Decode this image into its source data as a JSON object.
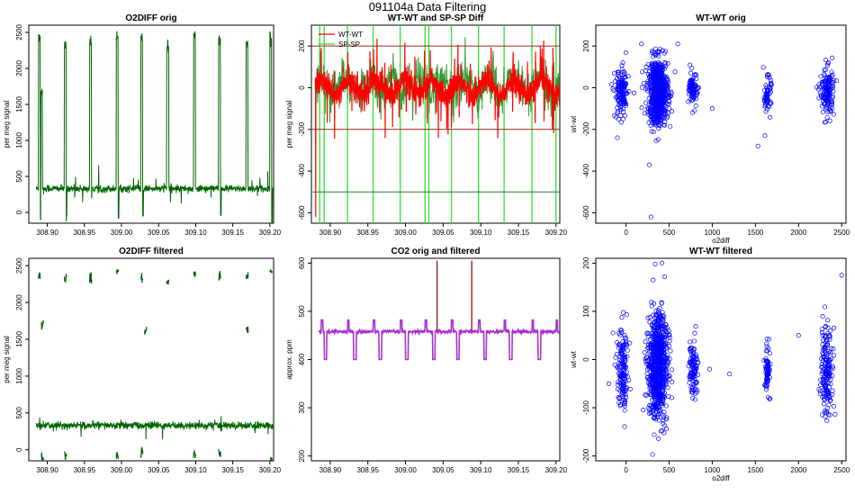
{
  "figure_title": "091104a   Data Filtering",
  "colors": {
    "o2": "#006400",
    "wt": "#ff0000",
    "sp": "#33dd33",
    "co2_filtered": "#aa33cc",
    "co2_orig": "#8b0000",
    "scatter": "#0000ff",
    "hline_red": "#a02020",
    "hline_green": "#228822"
  },
  "chart_data": [
    {
      "id": "o2diff-orig",
      "type": "line",
      "title": "O2DIFF orig",
      "xlabel": "",
      "ylabel": "per meg signal",
      "xlim": [
        308.875,
        309.205
      ],
      "ylim": [
        -150,
        2600
      ],
      "xticks": [
        308.9,
        308.95,
        309.0,
        309.05,
        309.1,
        309.15,
        309.2
      ],
      "xtick_labels": [
        "308.90",
        "308.95",
        "309.00",
        "309.05",
        "309.10",
        "309.15",
        "309.20"
      ],
      "yticks": [
        0,
        500,
        1000,
        1500,
        2000,
        2500
      ],
      "ytick_labels": [
        "0",
        "500",
        "1000",
        "1500",
        "2000",
        "2500"
      ],
      "baseline": 330,
      "noise": 25,
      "series_range": [
        308.885,
        309.205
      ],
      "spikes": [
        308.888,
        308.923,
        308.957,
        308.993,
        309.026,
        309.061,
        309.097,
        309.131,
        309.168,
        309.2
      ],
      "spike_heights": [
        2450,
        2300,
        2350,
        2450,
        2400,
        2300,
        2450,
        2400,
        2350,
        2480
      ],
      "spike_width": 0.0025,
      "secondary_spike": [
        308.892,
        1700
      ],
      "dips": [
        308.888,
        308.923,
        308.993,
        309.026,
        309.131,
        309.2
      ],
      "dip_values": [
        -100,
        -50,
        -80,
        -50,
        -40,
        -150
      ]
    },
    {
      "id": "wt-sp-diff",
      "type": "line",
      "title": "WT-WT and SP-SP Diff",
      "xlabel": "",
      "ylabel": "per meg signal",
      "xlim": [
        308.875,
        309.205
      ],
      "ylim": [
        -650,
        300
      ],
      "xticks": [
        308.9,
        308.95,
        309.0,
        309.05,
        309.1,
        309.15,
        309.2
      ],
      "xtick_labels": [
        "308.90",
        "308.95",
        "309.00",
        "309.05",
        "309.10",
        "309.15",
        "309.20"
      ],
      "yticks": [
        -600,
        -400,
        -200,
        0,
        200
      ],
      "ytick_labels": [
        "-600",
        "-400",
        "-200",
        "0",
        "200"
      ],
      "hlines_red": [
        200,
        -200
      ],
      "hlines_green": [
        -500
      ],
      "legend": [
        "WT-WT",
        "SP-SP"
      ],
      "legend_position": "top-left",
      "sp_spike_x": [
        308.886,
        308.892,
        308.923,
        308.957,
        308.993,
        309.026,
        309.031,
        309.061,
        309.097,
        309.131,
        309.168,
        309.2
      ],
      "wt_baseline": 0,
      "wt_noise": 30,
      "wt_min": -620
    },
    {
      "id": "wtwt-orig-scatter",
      "type": "scatter",
      "title": "WT-WT orig",
      "xlabel": "o2diff",
      "ylabel": "wt-wt",
      "xlim": [
        -350,
        2550
      ],
      "ylim": [
        -650,
        300
      ],
      "xticks": [
        0,
        500,
        1000,
        1500,
        2000,
        2500
      ],
      "xtick_labels": [
        "0",
        "500",
        "1000",
        "1500",
        "2000",
        "2500"
      ],
      "yticks": [
        -600,
        -400,
        -200,
        0,
        200
      ],
      "ytick_labels": [
        "-600",
        "-400",
        "-200",
        "0",
        "200"
      ],
      "clusters": [
        {
          "cx": -50,
          "sx": 40,
          "cy": -30,
          "sy": 60,
          "n": 140
        },
        {
          "cx": 370,
          "sx": 60,
          "cy": -20,
          "sy": 80,
          "n": 650
        },
        {
          "cx": 780,
          "sx": 25,
          "cy": -10,
          "sy": 40,
          "n": 90
        },
        {
          "cx": 1640,
          "sx": 20,
          "cy": -30,
          "sy": 40,
          "n": 60
        },
        {
          "cx": 2330,
          "sx": 40,
          "cy": -20,
          "sy": 60,
          "n": 150
        }
      ],
      "outliers": [
        [
          290,
          -620
        ],
        [
          270,
          -370
        ],
        [
          -100,
          -240
        ],
        [
          1530,
          -280
        ],
        [
          1610,
          -230
        ],
        [
          600,
          210
        ],
        [
          180,
          210
        ],
        [
          1000,
          -100
        ]
      ]
    },
    {
      "id": "o2diff-filtered",
      "type": "scatter",
      "title": "O2DIFF filtered",
      "xlabel": "",
      "ylabel": "per meg signal",
      "xlim": [
        308.875,
        309.205
      ],
      "ylim": [
        -150,
        2600
      ],
      "xticks": [
        308.9,
        308.95,
        309.0,
        309.05,
        309.1,
        309.15,
        309.2
      ],
      "xtick_labels": [
        "308.90",
        "308.95",
        "309.00",
        "309.05",
        "309.10",
        "309.15",
        "309.20"
      ],
      "yticks": [
        0,
        500,
        1000,
        1500,
        2000,
        2500
      ],
      "ytick_labels": [
        "0",
        "500",
        "1000",
        "1500",
        "2000",
        "2500"
      ],
      "baseline": 330,
      "noise": 25,
      "series_range": [
        308.885,
        309.205
      ],
      "upper_segments": [
        [
          308.888,
          2380
        ],
        [
          308.923,
          2300
        ],
        [
          308.957,
          2330
        ],
        [
          308.993,
          2420
        ],
        [
          309.026,
          2350
        ],
        [
          309.061,
          2290
        ],
        [
          309.097,
          2390
        ],
        [
          309.131,
          2380
        ],
        [
          309.168,
          2340
        ],
        [
          309.2,
          2400
        ]
      ],
      "mid_segments": [
        [
          308.892,
          1700
        ],
        [
          309.031,
          1620
        ],
        [
          309.168,
          1650
        ]
      ],
      "low_segments": [
        [
          308.892,
          -100
        ],
        [
          308.923,
          -60
        ],
        [
          308.993,
          -120
        ],
        [
          309.026,
          -40
        ],
        [
          309.097,
          -70
        ],
        [
          309.131,
          -40
        ],
        [
          309.2,
          -150
        ]
      ]
    },
    {
      "id": "co2-orig-filtered",
      "type": "line",
      "title": "CO2 orig and filtered",
      "xlabel": "",
      "ylabel": "approx. ppm",
      "xlim": [
        308.875,
        309.205
      ],
      "ylim": [
        190,
        610
      ],
      "xticks": [
        308.9,
        308.95,
        309.0,
        309.05,
        309.1,
        309.15,
        309.2
      ],
      "xtick_labels": [
        "308.90",
        "308.95",
        "309.00",
        "309.05",
        "309.10",
        "309.15",
        "309.20"
      ],
      "yticks": [
        200,
        300,
        400,
        500,
        600
      ],
      "ytick_labels": [
        "200",
        "300",
        "400",
        "500",
        "600"
      ],
      "baseline": 458,
      "high_pulses": [
        308.888,
        308.923,
        308.957,
        308.993,
        309.026,
        309.061,
        309.097,
        309.131,
        309.168,
        309.2
      ],
      "low_pulses": [
        308.892,
        308.931,
        308.965,
        309.0,
        309.036,
        309.068,
        309.104,
        309.138,
        309.176
      ],
      "high_value": 482,
      "low_value": 400,
      "orig_spikes": [
        [
          309.042,
          605
        ],
        [
          309.088,
          605
        ]
      ],
      "series_range": [
        308.885,
        309.205
      ]
    },
    {
      "id": "wtwt-filtered-scatter",
      "type": "scatter",
      "title": "WT-WT filtered",
      "xlabel": "o2diff",
      "ylabel": "wt-wt",
      "xlim": [
        -350,
        2550
      ],
      "ylim": [
        -210,
        210
      ],
      "xticks": [
        0,
        500,
        1000,
        1500,
        2000,
        2500
      ],
      "xtick_labels": [
        "0",
        "500",
        "1000",
        "1500",
        "2000",
        "2500"
      ],
      "yticks": [
        -200,
        -100,
        0,
        100,
        200
      ],
      "ytick_labels": [
        "-200",
        "-100",
        "0",
        "100",
        "200"
      ],
      "clusters": [
        {
          "cx": -40,
          "sx": 35,
          "cy": -20,
          "sy": 45,
          "n": 150
        },
        {
          "cx": 370,
          "sx": 55,
          "cy": -10,
          "sy": 55,
          "n": 800
        },
        {
          "cx": 780,
          "sx": 25,
          "cy": -15,
          "sy": 30,
          "n": 100
        },
        {
          "cx": 1640,
          "sx": 15,
          "cy": -25,
          "sy": 25,
          "n": 70
        },
        {
          "cx": 2330,
          "sx": 35,
          "cy": -20,
          "sy": 45,
          "n": 170
        }
      ],
      "outliers": [
        [
          2500,
          175
        ],
        [
          -200,
          -50
        ],
        [
          -150,
          55
        ],
        [
          970,
          -20
        ],
        [
          1200,
          -30
        ],
        [
          2000,
          50
        ]
      ]
    }
  ]
}
